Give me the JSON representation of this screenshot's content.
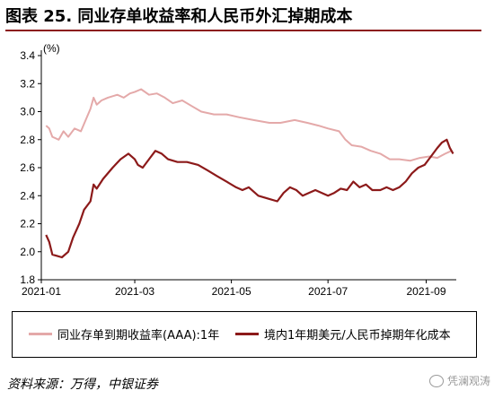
{
  "title": "图表 25. 同业存单收益率和人民币外汇掉期成本",
  "source": "资料来源：万得，中银证券",
  "watermark": "凭澜观涛",
  "colors": {
    "accent": "#8c1a1a",
    "series1": "#e4a9a9",
    "series2": "#8c1a1a"
  },
  "chart_data": {
    "type": "line",
    "unit_label": "(%)",
    "ylim": [
      1.8,
      3.4
    ],
    "yticks": [
      "1.8",
      "2.0",
      "2.2",
      "2.4",
      "2.6",
      "2.8",
      "3.0",
      "3.2",
      "3.4"
    ],
    "xticks": [
      "2021-01",
      "2021-03",
      "2021-05",
      "2021-07",
      "2021-09"
    ],
    "xlim": [
      "2021-01-01",
      "2021-09-20"
    ],
    "grid": false,
    "legend_position": "bottom",
    "series": [
      {
        "name": "同业存单到期收益率(AAA):1年",
        "color": "#e4a9a9",
        "points": [
          [
            "2021-01-04",
            2.9
          ],
          [
            "2021-01-06",
            2.88
          ],
          [
            "2021-01-08",
            2.82
          ],
          [
            "2021-01-12",
            2.8
          ],
          [
            "2021-01-15",
            2.86
          ],
          [
            "2021-01-18",
            2.82
          ],
          [
            "2021-01-22",
            2.88
          ],
          [
            "2021-01-26",
            2.86
          ],
          [
            "2021-01-29",
            2.94
          ],
          [
            "2021-02-01",
            3.02
          ],
          [
            "2021-02-03",
            3.1
          ],
          [
            "2021-02-05",
            3.05
          ],
          [
            "2021-02-08",
            3.08
          ],
          [
            "2021-02-12",
            3.1
          ],
          [
            "2021-02-18",
            3.12
          ],
          [
            "2021-02-22",
            3.1
          ],
          [
            "2021-02-26",
            3.13
          ],
          [
            "2021-03-01",
            3.14
          ],
          [
            "2021-03-05",
            3.16
          ],
          [
            "2021-03-10",
            3.12
          ],
          [
            "2021-03-15",
            3.13
          ],
          [
            "2021-03-20",
            3.1
          ],
          [
            "2021-03-25",
            3.06
          ],
          [
            "2021-03-31",
            3.08
          ],
          [
            "2021-04-06",
            3.04
          ],
          [
            "2021-04-12",
            3.0
          ],
          [
            "2021-04-20",
            2.98
          ],
          [
            "2021-04-28",
            2.98
          ],
          [
            "2021-05-06",
            2.96
          ],
          [
            "2021-05-15",
            2.94
          ],
          [
            "2021-05-25",
            2.92
          ],
          [
            "2021-06-01",
            2.92
          ],
          [
            "2021-06-10",
            2.94
          ],
          [
            "2021-06-18",
            2.92
          ],
          [
            "2021-06-25",
            2.9
          ],
          [
            "2021-07-01",
            2.88
          ],
          [
            "2021-07-08",
            2.86
          ],
          [
            "2021-07-12",
            2.8
          ],
          [
            "2021-07-16",
            2.76
          ],
          [
            "2021-07-22",
            2.75
          ],
          [
            "2021-07-28",
            2.72
          ],
          [
            "2021-08-03",
            2.7
          ],
          [
            "2021-08-09",
            2.66
          ],
          [
            "2021-08-15",
            2.66
          ],
          [
            "2021-08-22",
            2.65
          ],
          [
            "2021-08-28",
            2.67
          ],
          [
            "2021-09-03",
            2.68
          ],
          [
            "2021-09-08",
            2.67
          ],
          [
            "2021-09-13",
            2.7
          ],
          [
            "2021-09-17",
            2.72
          ]
        ]
      },
      {
        "name": "境内1年期美元/人民币掉期年化成本",
        "color": "#8c1a1a",
        "points": [
          [
            "2021-01-04",
            2.12
          ],
          [
            "2021-01-06",
            2.07
          ],
          [
            "2021-01-08",
            1.98
          ],
          [
            "2021-01-11",
            1.97
          ],
          [
            "2021-01-14",
            1.96
          ],
          [
            "2021-01-18",
            2.0
          ],
          [
            "2021-01-21",
            2.1
          ],
          [
            "2021-01-25",
            2.2
          ],
          [
            "2021-01-28",
            2.3
          ],
          [
            "2021-02-01",
            2.36
          ],
          [
            "2021-02-03",
            2.48
          ],
          [
            "2021-02-05",
            2.45
          ],
          [
            "2021-02-09",
            2.52
          ],
          [
            "2021-02-15",
            2.6
          ],
          [
            "2021-02-20",
            2.66
          ],
          [
            "2021-02-25",
            2.7
          ],
          [
            "2021-03-01",
            2.66
          ],
          [
            "2021-03-03",
            2.62
          ],
          [
            "2021-03-06",
            2.6
          ],
          [
            "2021-03-10",
            2.66
          ],
          [
            "2021-03-14",
            2.72
          ],
          [
            "2021-03-18",
            2.7
          ],
          [
            "2021-03-22",
            2.66
          ],
          [
            "2021-03-28",
            2.64
          ],
          [
            "2021-04-03",
            2.64
          ],
          [
            "2021-04-10",
            2.62
          ],
          [
            "2021-04-16",
            2.58
          ],
          [
            "2021-04-22",
            2.54
          ],
          [
            "2021-04-28",
            2.5
          ],
          [
            "2021-05-04",
            2.46
          ],
          [
            "2021-05-08",
            2.44
          ],
          [
            "2021-05-12",
            2.46
          ],
          [
            "2021-05-18",
            2.4
          ],
          [
            "2021-05-24",
            2.38
          ],
          [
            "2021-05-30",
            2.36
          ],
          [
            "2021-06-03",
            2.42
          ],
          [
            "2021-06-07",
            2.46
          ],
          [
            "2021-06-11",
            2.44
          ],
          [
            "2021-06-15",
            2.4
          ],
          [
            "2021-06-19",
            2.42
          ],
          [
            "2021-06-23",
            2.44
          ],
          [
            "2021-06-27",
            2.42
          ],
          [
            "2021-07-01",
            2.4
          ],
          [
            "2021-07-05",
            2.42
          ],
          [
            "2021-07-09",
            2.45
          ],
          [
            "2021-07-13",
            2.44
          ],
          [
            "2021-07-17",
            2.5
          ],
          [
            "2021-07-21",
            2.46
          ],
          [
            "2021-07-25",
            2.48
          ],
          [
            "2021-07-29",
            2.44
          ],
          [
            "2021-08-03",
            2.44
          ],
          [
            "2021-08-07",
            2.46
          ],
          [
            "2021-08-11",
            2.44
          ],
          [
            "2021-08-15",
            2.46
          ],
          [
            "2021-08-19",
            2.5
          ],
          [
            "2021-08-23",
            2.56
          ],
          [
            "2021-08-27",
            2.6
          ],
          [
            "2021-08-31",
            2.62
          ],
          [
            "2021-09-04",
            2.68
          ],
          [
            "2021-09-08",
            2.74
          ],
          [
            "2021-09-11",
            2.78
          ],
          [
            "2021-09-14",
            2.8
          ],
          [
            "2021-09-16",
            2.74
          ],
          [
            "2021-09-18",
            2.7
          ]
        ]
      }
    ]
  }
}
